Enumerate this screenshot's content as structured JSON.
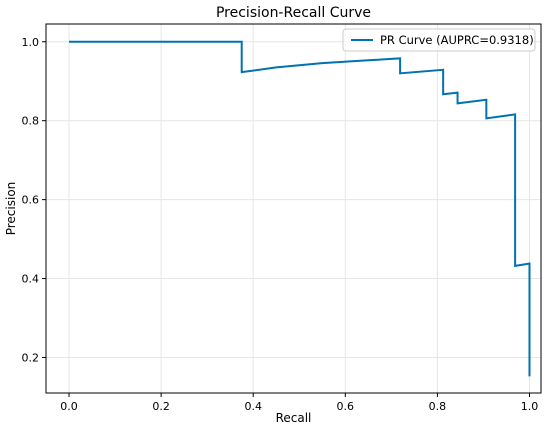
{
  "colors": {
    "series": "#0072b2",
    "grid": "#e6e6e6",
    "axis": "#000000",
    "legend_border": "#cccccc"
  },
  "chart_data": {
    "type": "line",
    "title": "Precision-Recall Curve",
    "xlabel": "Recall",
    "ylabel": "Precision",
    "xlim": [
      -0.05,
      1.025
    ],
    "ylim": [
      0.11,
      1.045
    ],
    "xticks": [
      0.0,
      0.2,
      0.4,
      0.6,
      0.8,
      1.0
    ],
    "xtick_labels": [
      "0.0",
      "0.2",
      "0.4",
      "0.6",
      "0.8",
      "1.0"
    ],
    "yticks": [
      0.2,
      0.4,
      0.6,
      0.8,
      1.0
    ],
    "ytick_labels": [
      "0.2",
      "0.4",
      "0.6",
      "0.8",
      "1.0"
    ],
    "grid": true,
    "legend_position": "upper-right",
    "series": [
      {
        "name": "PR Curve (AUPRC=0.9318)",
        "x": [
          0.0,
          0.375,
          0.375,
          0.45,
          0.55,
          0.65,
          0.719,
          0.719,
          0.8125,
          0.8125,
          0.8438,
          0.8438,
          0.9063,
          0.9063,
          0.9688,
          0.9688,
          1.0,
          1.0
        ],
        "y": [
          1.0,
          1.0,
          0.923,
          0.935,
          0.946,
          0.953,
          0.958,
          0.92,
          0.929,
          0.867,
          0.871,
          0.844,
          0.853,
          0.806,
          0.816,
          0.432,
          0.438,
          0.152
        ]
      }
    ]
  }
}
